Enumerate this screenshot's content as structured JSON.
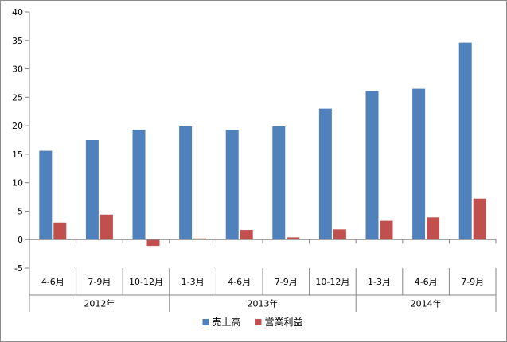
{
  "chart_data": {
    "type": "bar",
    "categories": [
      "4-6月",
      "7-9月",
      "10-12月",
      "1-3月",
      "4-6月",
      "7-9月",
      "10-12月",
      "1-3月",
      "4-6月",
      "7-9月"
    ],
    "groups": [
      {
        "label": "2012年",
        "start": 0,
        "end": 2
      },
      {
        "label": "2013年",
        "start": 3,
        "end": 6
      },
      {
        "label": "2014年",
        "start": 7,
        "end": 9
      }
    ],
    "series": [
      {
        "name": "売上高",
        "color": "#4f81bd",
        "values": [
          15.6,
          17.5,
          19.3,
          19.9,
          19.3,
          19.9,
          23.0,
          26.1,
          26.5,
          34.6
        ]
      },
      {
        "name": "営業利益",
        "color": "#c0504d",
        "values": [
          3.0,
          4.4,
          -1.1,
          0.2,
          1.7,
          0.4,
          1.8,
          3.3,
          3.9,
          7.2
        ]
      }
    ],
    "ylim": [
      -5,
      40
    ],
    "yticks": [
      -5,
      0,
      5,
      10,
      15,
      20,
      25,
      30,
      35,
      40
    ],
    "grid": false,
    "legend_position": "bottom"
  }
}
